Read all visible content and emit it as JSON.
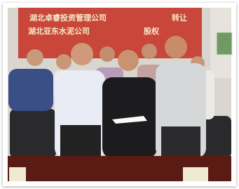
{
  "image": {
    "banner": {
      "line1": "湖北卓睿投资管理公司",
      "line1_right": "转让",
      "line2": "湖北亚东水泥公司",
      "line2_right": "股权"
    }
  }
}
